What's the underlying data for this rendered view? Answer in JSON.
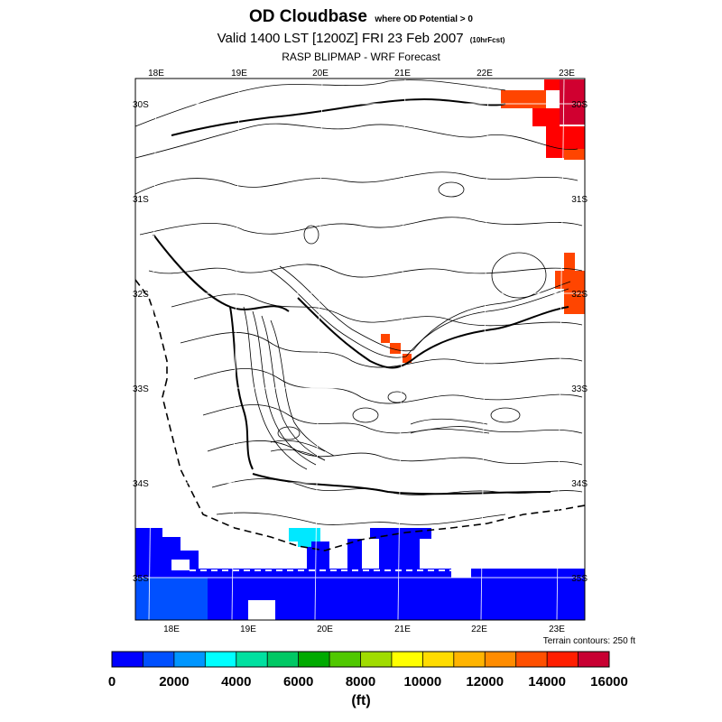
{
  "header": {
    "title": "OD Cloudbase",
    "title_note": "where OD Potential > 0",
    "subtitle": "Valid 1400 LST [1200Z] FRI 23 Feb 2007",
    "forecast_note": "(10hrFcst)",
    "source": "RASP BLIPMAP - WRF Forecast"
  },
  "map": {
    "top_lon_labels": [
      "18E",
      "19E",
      "20E",
      "21E",
      "22E",
      "23E"
    ],
    "bottom_lon_labels": [
      "18E",
      "19E",
      "20E",
      "21E",
      "22E",
      "23E"
    ],
    "right_lat_labels": [
      "30S",
      "31S",
      "32S",
      "33S",
      "34S",
      "35S"
    ],
    "left_lat_labels": [
      "30S",
      "31S",
      "32S",
      "33S",
      "34S",
      "35S"
    ],
    "terrain_note": "Terrain contours: 250 ft",
    "colors": {
      "very_low": "#0000ff",
      "low": "#0050ff",
      "cyan": "#00e8ff",
      "orange_red": "#ff4500",
      "red": "#ff0000",
      "crimson": "#d00030"
    }
  },
  "colorbar": {
    "units": "(ft)",
    "colors": [
      "#0000ff",
      "#0050ff",
      "#0096ff",
      "#00ffff",
      "#00e0a0",
      "#00c864",
      "#00aa00",
      "#50c800",
      "#a0dc00",
      "#ffff00",
      "#ffdc00",
      "#ffb400",
      "#ff8c00",
      "#ff5000",
      "#ff1e00",
      "#c80032"
    ],
    "labels": [
      "0",
      "2000",
      "4000",
      "6000",
      "8000",
      "10000",
      "12000",
      "14000",
      "16000"
    ]
  }
}
